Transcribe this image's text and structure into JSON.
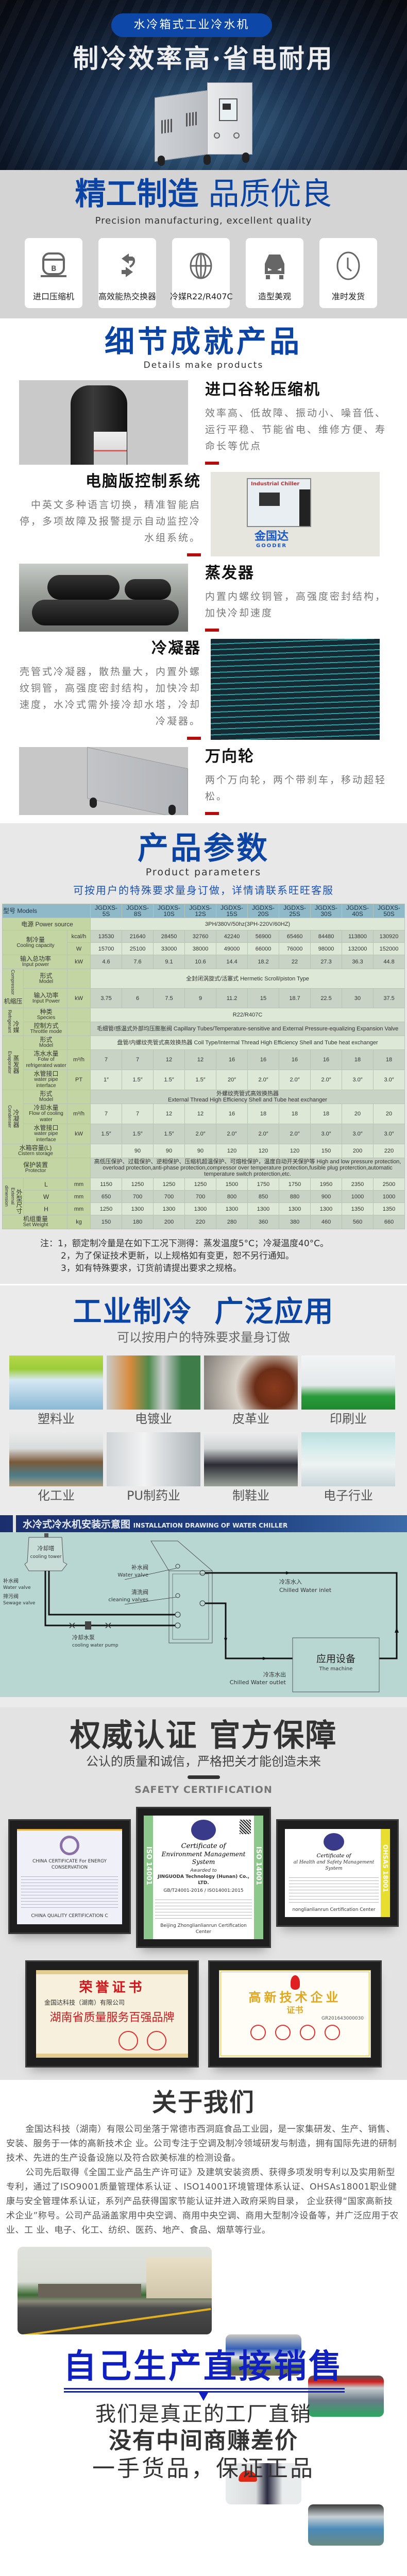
{
  "hero": {
    "badge": "水冷箱式工业冷水机",
    "title": "制冷效率高·省电耐用",
    "panel_label": "Industrial Chiller"
  },
  "quality": {
    "title_bold": "精工制造",
    "title_light": "品质优良",
    "subtitle": "Precision manufacturing, excellent quality",
    "features": [
      {
        "label": "进口压缩机",
        "icon": "compressor-icon"
      },
      {
        "label": "高效能热交换器",
        "icon": "exchange-arrows-icon"
      },
      {
        "label": "冷媒R22/R407C",
        "icon": "globe-icon"
      },
      {
        "label": "造型美观",
        "icon": "car-icon"
      },
      {
        "label": "准时发货",
        "icon": "clock-icon"
      }
    ]
  },
  "details": {
    "title": "细节成就产品",
    "subtitle": "Details make products",
    "items": [
      {
        "title": "进口谷轮压缩机",
        "text": "效率高、低故障、振动小、噪音低、运行平稳、节能省电、维修方便、寿命长等优点"
      },
      {
        "title": "电脑版控制系统",
        "text": "中英文多种语言切换，精准智能启停，多项故障及报警提示自动监控冷水组系统。",
        "logo_cn": "金国达",
        "logo_en": "GOODER",
        "panel_label": "Industrial Chiller"
      },
      {
        "title": "蒸发器",
        "text": "内置内螺纹铜管，高强度密封结构，加快冷却速度"
      },
      {
        "title": "冷凝器",
        "text": "壳管式冷凝器，散热量大，内置外螺纹铜管，高强度密封结构，加快冷却速度，水冷式需外接冷却水塔，冷却冷凝器。"
      },
      {
        "title": "万向轮",
        "text": "两个万向轮，两个带刹车，移动超轻松。"
      }
    ],
    "accent_color": "#b30d0d"
  },
  "params": {
    "title": "产品参数",
    "subtitle": "Product parameters",
    "custom_note": "可按用户的特殊要求量身订做，详情请联系旺旺客服",
    "table": {
      "header_label": "型号 Models",
      "models": [
        "JGDXS-5S",
        "JGDXS-8S",
        "JGDXS-10S",
        "JGDXS-12S",
        "JGDXS-15S",
        "JGDXS-20S",
        "JGDXS-25S",
        "JGDXS-30S",
        "JGDXS-40S",
        "JGDXS-50S"
      ],
      "rows": [
        {
          "type": "full",
          "label_cn": "电源",
          "label_en": "Power source",
          "span": "3PH/380V/50hz(3PH-220V/60HZ)"
        },
        {
          "type": "multi",
          "label_cn": "制冷量",
          "label_en": "Cooling capacity",
          "subs": [
            {
              "unit": "kcal/h",
              "values": [
                "13530",
                "21640",
                "28450",
                "32760",
                "42240",
                "56900",
                "65460",
                "84480",
                "113800",
                "130920"
              ]
            },
            {
              "unit": "W",
              "values": [
                "15700",
                "25100",
                "33000",
                "38000",
                "49000",
                "66000",
                "76000",
                "98000",
                "132000",
                "152000"
              ]
            }
          ]
        },
        {
          "type": "single",
          "label_cn": "输入总功率",
          "label_en": "Input power",
          "unit": "kW",
          "values": [
            "4.6",
            "7.6",
            "9.1",
            "10.6",
            "14.4",
            "18.2",
            "22",
            "27.3",
            "36.3",
            "44.8"
          ]
        },
        {
          "type": "group",
          "group_cn": "压缩机",
          "group_en": "Compressor",
          "items": [
            {
              "label_cn": "形式",
              "label_en": "Model",
              "unit": "",
              "span": "全封闭涡旋式/活塞式 Hermetic Scroll/piston Type"
            },
            {
              "label_cn": "输入功率",
              "label_en": "Input Power",
              "unit": "kW",
              "values": [
                "3.75",
                "6",
                "7.5",
                "9",
                "11.2",
                "15",
                "18.7",
                "22.5",
                "30",
                "37.5"
              ]
            }
          ]
        },
        {
          "type": "group",
          "group_cn": "冷媒",
          "group_en": "Refrigerant",
          "items": [
            {
              "label_cn": "种类",
              "label_en": "Species",
              "unit": "",
              "span": "R22/R407C"
            },
            {
              "label_cn": "控制方式",
              "label_en": "Throttle mode",
              "unit": "",
              "span": "毛细管/感温式外部均压膨胀阀  Capillary Tubes/Temperature-sensitive and External Pressure-equalizing Expansion Valve"
            }
          ]
        },
        {
          "type": "group",
          "group_cn": "蒸发器",
          "group_en": "Evaporator",
          "items": [
            {
              "label_cn": "形式",
              "label_en": "Model",
              "unit": "",
              "span": "盘管/内螺纹壳管式高效换热器  Coil Type/Intermal Thread High Efficiency Shell and Tube heat exchanger"
            },
            {
              "label_cn": "冻水水量",
              "label_en": "Folw of refrigerated water",
              "unit": "m³/h",
              "values": [
                "7",
                "7",
                "12",
                "12",
                "16",
                "16",
                "16",
                "16",
                "18",
                "18"
              ]
            },
            {
              "label_cn": "水管接口",
              "label_en": "water pipe interface",
              "unit": "PT",
              "values": [
                "1″",
                "1.5″",
                "1.5″",
                "1.5″",
                "20″",
                "2.0″",
                "2.0″",
                "2.0″",
                "3.0″",
                "3.0″"
              ]
            }
          ]
        },
        {
          "type": "group",
          "group_cn": "冷凝器",
          "group_en": "Condenser",
          "items": [
            {
              "label_cn": "形式",
              "label_en": "Model",
              "unit": "",
              "span": "外螺纹壳管式高效换热器",
              "span_en": "External Thread High Efficiency Shell and Tube heat exchanger",
              "tall": true
            },
            {
              "label_cn": "冷却水量",
              "label_en": "Flow of cooling water",
              "unit": "m³/h",
              "values": [
                "7",
                "7",
                "12",
                "12",
                "16",
                "18",
                "18",
                "18",
                "20",
                "20"
              ]
            },
            {
              "label_cn": "水管接口",
              "label_en": "water pipe interface",
              "unit": "kW",
              "values": [
                "1.5″",
                "1.5″",
                "1.5″",
                "2.0″",
                "2.0″",
                "2.0″",
                "2.0″",
                "3.0″",
                "3.0″",
                "3.0″"
              ]
            }
          ]
        },
        {
          "type": "single",
          "label_cn": "水箱容量(L)",
          "label_en": "Cistern storage",
          "unit": "",
          "values": [
            "",
            "90",
            "90",
            "90",
            "120",
            "120",
            "120",
            "150",
            "200",
            "220"
          ]
        },
        {
          "type": "single_span",
          "label_cn": "保护装置",
          "label_en": "Protector",
          "unit": "",
          "span": "高低压保护、过载保护、逆相保护、压缩机超温保护、可熔栓保护，温度自动开关保护等 High and low pressure protection,",
          "span_en": "overload protection,anti-phase protection,compressor over temperature protection,fusible plug proterction,automatic temperature switch proterction,etc."
        },
        {
          "type": "group",
          "group_cn": "外型尺寸",
          "group_en": "External dimension",
          "items": [
            {
              "label_cn": "L",
              "label_en": "",
              "unit": "mm",
              "values": [
                "1150",
                "1250",
                "1250",
                "1250",
                "1500",
                "1750",
                "1750",
                "1950",
                "2350",
                "2500"
              ]
            },
            {
              "label_cn": "W",
              "label_en": "",
              "unit": "mm",
              "values": [
                "650",
                "700",
                "700",
                "700",
                "800",
                "850",
                "880",
                "900",
                "1000",
                "1000"
              ]
            },
            {
              "label_cn": "H",
              "label_en": "",
              "unit": "mm",
              "values": [
                "1250",
                "1300",
                "1300",
                "1300",
                "1300",
                "1300",
                "1300",
                "1300",
                "1350",
                "1350"
              ]
            }
          ]
        },
        {
          "type": "single",
          "label_cn": "机组重量",
          "label_en": "Set Weight",
          "unit": "kg",
          "values": [
            "150",
            "180",
            "200",
            "220",
            "280",
            "360",
            "380",
            "460",
            "560",
            "660"
          ]
        }
      ]
    },
    "notes": [
      "注：1，额定制冷量是在如下工况下测得：蒸发温度5°C；冷凝温度40°C。",
      "2，为了保证技术更新，以上规格如有变更，恕不另行通知。",
      "3，如有特殊要求，订货前请提出要求之规格。"
    ]
  },
  "applications": {
    "title": "工业制冷  广泛应用",
    "subtitle": "可以按用户的特殊要求量身订做",
    "industries": [
      "塑料业",
      "电镀业",
      "皮革业",
      "印刷业",
      "化工业",
      "PU制药业",
      "制鞋业",
      "电子行业"
    ]
  },
  "installation": {
    "title_cn": "水冷式冷水机安装示意图",
    "title_en": "INSTALLATION DRAWING OF WATER CHILLER",
    "labels": {
      "tower_cn": "冷却塔",
      "tower_en": "cooling tower",
      "tower_valve_cn": "补水阀",
      "tower_valve_en": "Water valve",
      "sewage_cn": "排污阀",
      "sewage_en": "Sewage valve",
      "pump_cn": "冷却水泵",
      "pump_en": "cooling water pump",
      "valve_cn": "补水阀",
      "valve_en": "Water valve",
      "clean_cn": "清洗阀",
      "clean_en": "cleaning valves",
      "inlet_cn": "冷冻水入",
      "inlet_en": "Chilled Water inlet",
      "outlet_cn": "冷冻水出",
      "outlet_en": "Chilled Water outlet",
      "machine_cn": "应用设备",
      "machine_en": "The machine"
    }
  },
  "certification": {
    "title": "权威认证 官方保障",
    "subtitle": "公认的质量和诚信，严格把关才能创造未来",
    "label": "SAFETY CERTIFICATION",
    "certs": {
      "left_title": "CHINA CERTIFICATE For ENERGY CONSERVATION",
      "left_footer": "CHINA QUALITY CERTIFICATION C",
      "center_title1": "Certificate of",
      "center_title2": "Environment Management System",
      "center_awarded": "Awarded to",
      "center_company": "JINGUODA Technology (Hunan) Co., LTD.",
      "center_standard": "GB/T24001-2016 / ISO14001:2015",
      "center_side": "ISO 14001",
      "center_footer": "Beijing Zhonglianlianrun Certification Center",
      "right_title1": "Certificate of",
      "right_title2": "al Health and Safety Management System",
      "right_side": "OHSAS 18001",
      "right_footer": "nonglianlianrun Certification Center",
      "honor_title": "荣誉证书",
      "honor_company": "金国达科技（湖南）有限公司",
      "honor_award": "湖南省质量服务百强品牌",
      "hitech_title": "高新技术企业",
      "hitech_sub": "证书",
      "hitech_no": "GR201643000030"
    }
  },
  "about": {
    "title": "关于我们",
    "paragraphs": [
      "金国达科技（湖南）有限公司坐落于常德市西洞庭食品工业园，是一家集研发、生产、销售、安装、服务于一体的高新技术企 业。公司专注于空调及制冷领域研发与制造，拥有国际先进的研制技术、先进的生产设备设施以及符合欧美标准的检测设备。",
      "公司先后取得《全国工业产品生产许可证》及建筑安装资质、获得多项发明专利以及实用新型专利，通过了ISO9001质量管理体系认证 、ISO14001环境管理体系认证、OHSAs18001职业健康与安全管理体系认证，系列产品获得国家节能认证并进入政府采购目录， 企业获得“国家高新技术企业”称号。公司产品涵盖家用中央空调、商用中央空调、商用大型制冷设备等，并广泛应用于农业、工 业、电子、化工、纺织、医药、地产、食品、烟草等行业。"
    ]
  },
  "direct_sale": {
    "title": "自己生产直接销售",
    "line1": "我们是真正的工厂直销",
    "line2": "没有中间商赚差价",
    "line3": "一手货品，保证正品",
    "accent_color": "#1020c0"
  },
  "colors": {
    "brand_blue": "#0c44a4",
    "accent_red": "#b30d0d",
    "table_header": "#8fb9c8",
    "table_label": "#c3d5a2"
  }
}
